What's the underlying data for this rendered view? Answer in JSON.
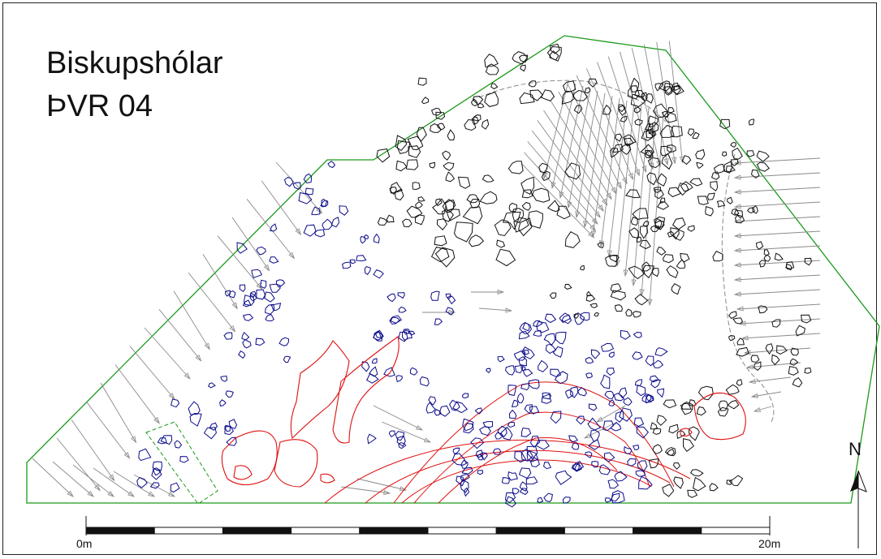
{
  "title": {
    "line1": "Biskupshólar",
    "line2": "ÞVR 04"
  },
  "scale_bar": {
    "start_label": "0m",
    "end_label": "20m",
    "segments": 10
  },
  "north_arrow": {
    "label": "N"
  },
  "colors": {
    "boundary": "#1a9a1a",
    "old_stones": "#0a0a8a",
    "stones": "#111111",
    "excavation": "#e01010",
    "slope_hachures": "#8a8a8a",
    "dashed_area": "#1a9a1a"
  },
  "icons": {
    "north_arrow": "north-arrow-icon"
  }
}
